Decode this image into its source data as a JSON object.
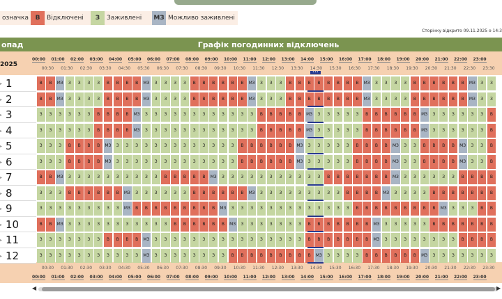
{
  "legend": {
    "label_prefix": "Позначка",
    "label_fragment": "означка",
    "items": [
      {
        "code": "В",
        "label": "Відключені",
        "color": "#e0705c"
      },
      {
        "code": "З",
        "label": "Заживлені",
        "color": "#c5d6a2"
      },
      {
        "code": "МЗ",
        "label": "Можливо заживлені",
        "color": "#a9b5c4"
      }
    ]
  },
  "page_opened": "Сторінку відкрито 09.11.2025 о 14:3",
  "title": {
    "left": "опад",
    "center": "Графік погодинних відключень"
  },
  "date_fragment": "2025",
  "current_slot_marker": "•••",
  "hours": [
    "00:00",
    "01:00",
    "02:00",
    "03:00",
    "04:00",
    "05:00",
    "06:00",
    "07:00",
    "08:00",
    "09:00",
    "10:00",
    "11:00",
    "12:00",
    "13:00",
    "14:00",
    "15:00",
    "16:00",
    "17:00",
    "18:00",
    "19:00",
    "20:00",
    "21:00",
    "22:00",
    "23:00"
  ],
  "half_hours": [
    "00:30",
    "01:30",
    "02:30",
    "03:30",
    "04:30",
    "05:30",
    "06:30",
    "07:30",
    "08:30",
    "09:30",
    "10:30",
    "11:30",
    "12:30",
    "13:30",
    "14:30",
    "15:30",
    "16:30",
    "17:30",
    "18:30",
    "19:30",
    "20:30",
    "21:30",
    "22:30",
    "23:30"
  ],
  "cell_text": {
    "v": "В",
    "z": "З",
    "m": "МЗ"
  },
  "queues": [
    {
      "num": "1",
      "slots": "vvmzzzzvvvvmzzzzvvvvvvmzzzvvvvvvvvmzzzzvvvvvvmzzzvv"
    },
    {
      "num": "2",
      "slots": "vvmzzzzvvvvmzzzzvvvvvvmzzzvvvvvvvvmzzzzvvvvvvmzzzvv"
    },
    {
      "num": "3",
      "slots": "zzzzzzvvvvmzzzzzzzzzzzzvvvvvmzzzzzvvvvvvmzzzzzzvvvm"
    },
    {
      "num": "4",
      "slots": "zzzzzzvvvvmzzzzzzzzzzzzvvvvvmzzzzzvvvvvvmzzzzzzvvvm"
    },
    {
      "num": "5",
      "slots": "zzzvvvvmzzzzzzzzzzzzzvvvvvvmzzzzzvvvvmzzvvvvmzzvvvv"
    },
    {
      "num": "6",
      "slots": "zzzvvvvmzzzzzzzzzzzzzvvvvvvmzzzzzvvvvmzzvvvvmzzvvvv"
    },
    {
      "num": "7",
      "slots": "vvmzzzzzzzzzzvvvvvmzzzzzzzzzzzvvvvvvvmzzzzzzvvvvvvm"
    },
    {
      "num": "8",
      "slots": "zzzvvvvvvmzzzzzzvvvvvvmzzzzzzzzzvvvvmzzzzvvvvvvvmzz"
    },
    {
      "num": "9",
      "slots": "zzzzzzzzzmvvvvvvvvvmzzzzzzzzzzzzzvvvvvvvvvmzzzvvvvv"
    },
    {
      "num": "10",
      "slots": "vvmzzzzzzzzzzzvvvvvvmzzzzzzzvvvvvvvmzzzzzvvvvvvvvmz"
    },
    {
      "num": "11",
      "slots": "zzzzzzzvvvvmzzzzzzzzzzzzzzzzvvvvvvvmzzzzzzzzvvvvvvv"
    },
    {
      "num": "12",
      "slots": "zzzzzzzzzzzmzzzzzzzzvvvvvvvvvmzzzzvvvvvvmzzzzzzzzzz"
    }
  ]
}
